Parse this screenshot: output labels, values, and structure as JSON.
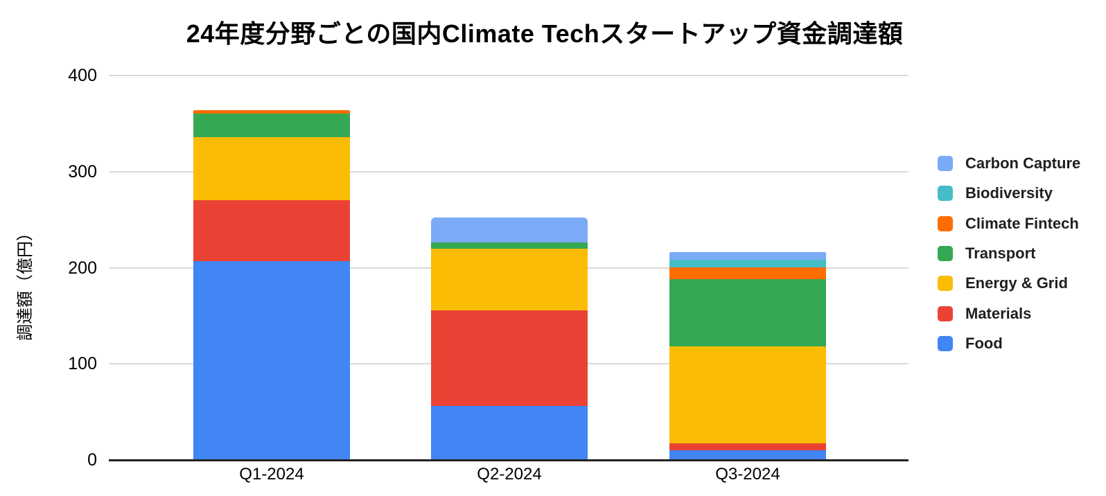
{
  "title": "24年度分野ごとの国内Climate Techスタートアップ資金調達額",
  "y_axis": {
    "title": "調達額（億円）",
    "ticks": [
      0,
      100,
      200,
      300,
      400
    ],
    "min": 0,
    "max": 400
  },
  "x_axis": {
    "labels": [
      "Q1-2024",
      "Q2-2024",
      "Q3-2024"
    ]
  },
  "colors": {
    "food": "#4285F4",
    "materials": "#EA4335",
    "energy_grid": "#FBBC04",
    "transport": "#34A853",
    "climate_fintech": "#FF6D01",
    "biodiversity": "#46BDC6",
    "carbon_capture": "#7BAAF7",
    "gridline": "#D9D9D9",
    "axis_line": "#212121"
  },
  "chart_data": {
    "type": "bar",
    "subtype": "stacked-vertical",
    "title": "24年度分野ごとの国内Climate Techスタートアップ資金調達額",
    "xlabel": "",
    "ylabel": "調達額（億円）",
    "ylim": [
      0,
      400
    ],
    "grid": true,
    "legend_position": "right",
    "categories": [
      "Q1-2024",
      "Q2-2024",
      "Q3-2024"
    ],
    "series_bottom_to_top": [
      {
        "name": "Food",
        "color": "#4285F4",
        "values": [
          207,
          56,
          10
        ]
      },
      {
        "name": "Materials",
        "color": "#EA4335",
        "values": [
          63,
          100,
          7
        ]
      },
      {
        "name": "Energy & Grid",
        "color": "#FBBC04",
        "values": [
          66,
          64,
          101
        ]
      },
      {
        "name": "Transport",
        "color": "#34A853",
        "values": [
          24,
          6,
          70
        ]
      },
      {
        "name": "Climate Fintech",
        "color": "#FF6D01",
        "values": [
          4,
          0,
          12
        ]
      },
      {
        "name": "Biodiversity",
        "color": "#46BDC6",
        "values": [
          0,
          0,
          8
        ]
      },
      {
        "name": "Carbon Capture",
        "color": "#7BAAF7",
        "values": [
          0,
          26,
          8
        ]
      }
    ],
    "totals": [
      364,
      252,
      216
    ],
    "legend_top_to_bottom": [
      "Carbon Capture",
      "Biodiversity",
      "Climate Fintech",
      "Transport",
      "Energy & Grid",
      "Materials",
      "Food"
    ]
  }
}
